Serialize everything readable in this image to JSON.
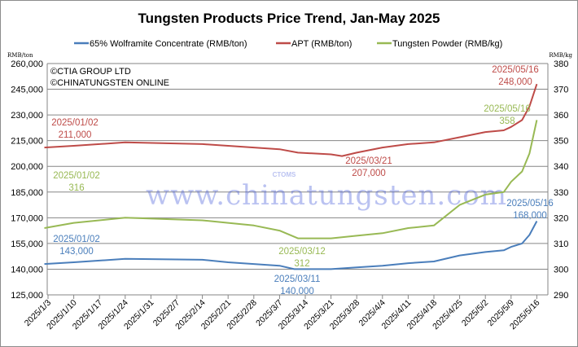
{
  "chart_data": {
    "type": "line",
    "title": "Tungsten Products Price Trend, Jan-May 2025",
    "left_axis": {
      "unit_label": "RMB/ton",
      "range": [
        125000,
        260000
      ],
      "ticks": [
        "125,000",
        "140,000",
        "155,000",
        "170,000",
        "185,000",
        "200,000",
        "215,000",
        "230,000",
        "245,000",
        "260,000"
      ]
    },
    "right_axis": {
      "unit_label": "RMB/kg",
      "range": [
        290,
        380
      ],
      "ticks": [
        "290",
        "300",
        "310",
        "320",
        "330",
        "340",
        "350",
        "360",
        "370",
        "380"
      ]
    },
    "x_ticks": [
      "2025/1/3",
      "2025/1/10",
      "2025/1/17",
      "2025/1/24",
      "2025/1/31",
      "2025/2/7",
      "2025/2/14",
      "2025/2/21",
      "2025/2/28",
      "2025/3/7",
      "2025/3/14",
      "2025/3/21",
      "2025/3/28",
      "2025/4/4",
      "2025/4/11",
      "2025/4/18",
      "2025/4/25",
      "2025/5/2",
      "2025/5/9",
      "2025/5/16"
    ],
    "grid": true,
    "legend_position": "top",
    "copyright": [
      "©CTIA GROUP LTD",
      "©CHINATUNGSTEN ONLINE"
    ],
    "watermark": "www.chinatungsten.com",
    "series": [
      {
        "name": "65% Wolframite Concentrate (RMB/ton)",
        "axis": "left",
        "color": "#4a7ebb",
        "x": [
          "2025-01-02",
          "2025-01-10",
          "2025-01-17",
          "2025-01-24",
          "2025-02-14",
          "2025-02-21",
          "2025-02-28",
          "2025-03-07",
          "2025-03-11",
          "2025-03-21",
          "2025-03-28",
          "2025-04-04",
          "2025-04-11",
          "2025-04-18",
          "2025-04-25",
          "2025-05-02",
          "2025-05-07",
          "2025-05-09",
          "2025-05-12",
          "2025-05-14",
          "2025-05-16"
        ],
        "values": [
          143000,
          144000,
          145000,
          146000,
          145500,
          144000,
          143000,
          142000,
          140000,
          140000,
          141000,
          142000,
          143500,
          144500,
          148000,
          150000,
          151000,
          153000,
          155000,
          160000,
          168000
        ]
      },
      {
        "name": "APT (RMB/ton)",
        "axis": "left",
        "color": "#be4b48",
        "x": [
          "2025-01-02",
          "2025-01-10",
          "2025-01-17",
          "2025-01-24",
          "2025-02-14",
          "2025-02-21",
          "2025-02-28",
          "2025-03-07",
          "2025-03-12",
          "2025-03-21",
          "2025-03-24",
          "2025-03-28",
          "2025-04-04",
          "2025-04-11",
          "2025-04-18",
          "2025-04-25",
          "2025-05-02",
          "2025-05-07",
          "2025-05-09",
          "2025-05-12",
          "2025-05-14",
          "2025-05-16"
        ],
        "values": [
          211000,
          212000,
          213000,
          214000,
          213000,
          212000,
          211000,
          210000,
          208000,
          207000,
          206000,
          208000,
          211000,
          213000,
          214000,
          217000,
          220000,
          221000,
          223000,
          227000,
          235000,
          248000
        ]
      },
      {
        "name": "Tungsten Powder (RMB/kg)",
        "axis": "right",
        "color": "#98b954",
        "x": [
          "2025-01-02",
          "2025-01-10",
          "2025-01-24",
          "2025-02-14",
          "2025-02-21",
          "2025-02-28",
          "2025-03-07",
          "2025-03-12",
          "2025-03-21",
          "2025-03-28",
          "2025-04-04",
          "2025-04-11",
          "2025-04-18",
          "2025-04-25",
          "2025-05-02",
          "2025-05-07",
          "2025-05-09",
          "2025-05-12",
          "2025-05-14",
          "2025-05-16"
        ],
        "values": [
          316,
          318,
          320,
          319,
          318,
          317,
          315,
          312,
          312,
          313,
          314,
          316,
          317,
          325,
          329,
          330,
          334,
          338,
          345,
          358
        ]
      }
    ],
    "annotations": [
      {
        "date": "2025/01/02",
        "value": "211,000",
        "color": "#be4b48",
        "series": "APT (RMB/ton)"
      },
      {
        "date": "2025/03/21",
        "value": "207,000",
        "color": "#be4b48",
        "series": "APT (RMB/ton)"
      },
      {
        "date": "2025/05/16",
        "value": "248,000",
        "color": "#be4b48",
        "series": "APT (RMB/ton)"
      },
      {
        "date": "2025/01/02",
        "value": "316",
        "color": "#98b954",
        "series": "Tungsten Powder (RMB/kg)"
      },
      {
        "date": "2025/03/12",
        "value": "312",
        "color": "#98b954",
        "series": "Tungsten Powder (RMB/kg)"
      },
      {
        "date": "2025/05/16",
        "value": "358",
        "color": "#98b954",
        "series": "Tungsten Powder (RMB/kg)"
      },
      {
        "date": "2025/01/02",
        "value": "143,000",
        "color": "#4a7ebb",
        "series": "65% Wolframite Concentrate (RMB/ton)"
      },
      {
        "date": "2025/03/11",
        "value": "140,000",
        "color": "#4a7ebb",
        "series": "65% Wolframite Concentrate (RMB/ton)"
      },
      {
        "date": "2025/05/16",
        "value": "168,000",
        "color": "#4a7ebb",
        "series": "65% Wolframite Concentrate (RMB/ton)"
      }
    ]
  }
}
